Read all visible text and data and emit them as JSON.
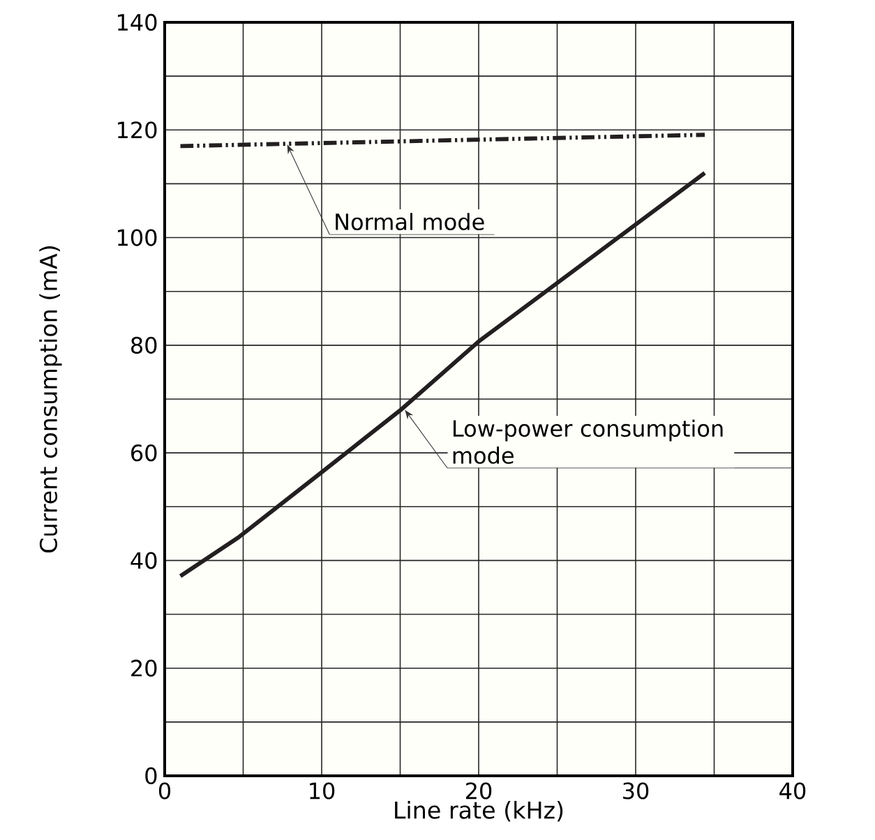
{
  "chart_data": {
    "type": "line",
    "xlabel": "Line rate (kHz)",
    "ylabel": "Current consumption (mA)",
    "xlim": [
      0,
      40
    ],
    "ylim": [
      0,
      140
    ],
    "xticks": [
      0,
      {
        "value": 5,
        "label": null
      },
      10,
      {
        "value": 15,
        "label": null
      },
      20,
      {
        "value": 25,
        "label": null
      },
      30,
      {
        "value": 35,
        "label": null
      },
      40
    ],
    "yticks": [
      0,
      {
        "value": 10,
        "label": null
      },
      20,
      {
        "value": 30,
        "label": null
      },
      40,
      {
        "value": 50,
        "label": null
      },
      60,
      {
        "value": 70,
        "label": null
      },
      80,
      {
        "value": 90,
        "label": null
      },
      100,
      {
        "value": 110,
        "label": null
      },
      120,
      {
        "value": 130,
        "label": null
      },
      140
    ],
    "grid": true,
    "marker": "none",
    "series": [
      {
        "color": "#231f20",
        "line_style": "dashdot",
        "x": [
          1,
          34.4
        ],
        "values": [
          117,
          119.1
        ]
      },
      {
        "color": "#231f20",
        "line_style": "solid",
        "x": [
          1,
          4.7,
          10,
          15,
          20,
          34.4
        ],
        "values": [
          37.1,
          44.3,
          56.4,
          67.9,
          80.7,
          112
        ]
      }
    ],
    "annotations": [
      {
        "text": "Normal mode",
        "x": 7.8,
        "y": 117.3
      },
      {
        "text": "Low-power consumption mode",
        "x": 15.3,
        "y": 68
      }
    ]
  }
}
